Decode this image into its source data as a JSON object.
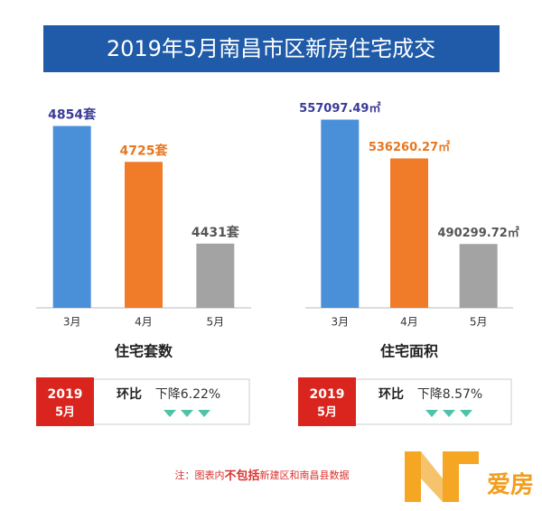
{
  "title": "2019年5月南昌市区新房住宅成交",
  "chart_data": [
    {
      "type": "bar",
      "title": "住宅套数",
      "categories": [
        "3月",
        "4月",
        "5月"
      ],
      "values": [
        4854,
        4725,
        4431
      ],
      "value_labels": [
        "4854套",
        "4725套",
        "4431套"
      ],
      "colors": [
        "#4a90d9",
        "#f07c2a",
        "#a3a3a3"
      ],
      "label_colors": [
        "#3b3b98",
        "#e8771f",
        "#555555"
      ],
      "ylim": [
        4200,
        4950
      ]
    },
    {
      "type": "bar",
      "title": "住宅面积",
      "categories": [
        "3月",
        "4月",
        "5月"
      ],
      "values": [
        557097.49,
        536260.27,
        490299.72
      ],
      "value_labels": [
        "557097.49㎡",
        "536260.27㎡",
        "490299.72㎡"
      ],
      "colors": [
        "#4a90d9",
        "#f07c2a",
        "#a3a3a3"
      ],
      "label_colors": [
        "#3b3b98",
        "#e8771f",
        "#555555"
      ],
      "ylim": [
        456000,
        568000
      ]
    }
  ],
  "comparisons": [
    {
      "year": "2019",
      "month": "5月",
      "label": "环比",
      "change": "下降6.22%"
    },
    {
      "year": "2019",
      "month": "5月",
      "label": "环比",
      "change": "下降8.57%"
    }
  ],
  "note": [
    "注：图表内",
    "不包括",
    "新建区和南昌县数据"
  ],
  "logo": "爱房"
}
